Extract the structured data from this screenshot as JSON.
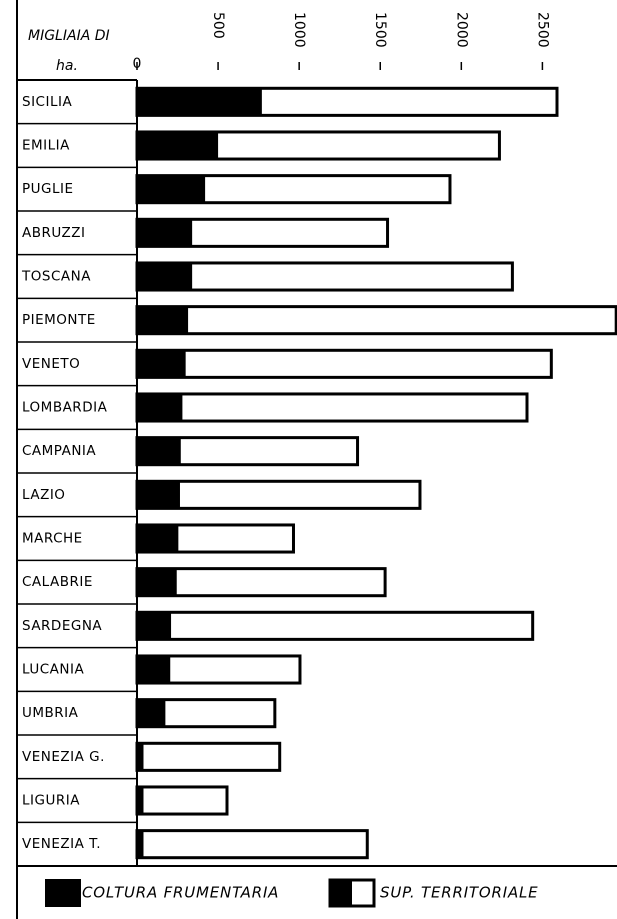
{
  "chart_data": {
    "type": "bar",
    "axis_label_lines": [
      "MIGLIAIA DI",
      "ha."
    ],
    "categories": [
      "SICILIA",
      "EMILIA",
      "PUGLIE",
      "ABRUZZI",
      "TOSCANA",
      "PIEMONTE",
      "VENETO",
      "LOMBARDIA",
      "CAMPANIA",
      "LAZIO",
      "MARCHE",
      "CALABRIE",
      "SARDEGNA",
      "LUCANIA",
      "UMBRIA",
      "VENEZIA  G.",
      "LIGURIA",
      "VENEZIA  T."
    ],
    "series": [
      {
        "name": "COLTURA  FRUMENTARIA",
        "color": "#000000",
        "values": [
          770,
          500,
          420,
          340,
          340,
          315,
          300,
          280,
          270,
          265,
          255,
          245,
          210,
          205,
          175,
          40,
          40,
          40
        ]
      },
      {
        "name": "SUP.  TERRITORIALE",
        "color": "#ffffff",
        "values": [
          2590,
          2235,
          1930,
          1545,
          2315,
          2955,
          2555,
          2405,
          1360,
          1745,
          965,
          1530,
          2440,
          1005,
          850,
          880,
          555,
          1420
        ]
      }
    ],
    "xlim": [
      0,
      2960
    ],
    "xticks": [
      0,
      500,
      1000,
      1500,
      2000,
      2500
    ],
    "legend": "bottom"
  }
}
